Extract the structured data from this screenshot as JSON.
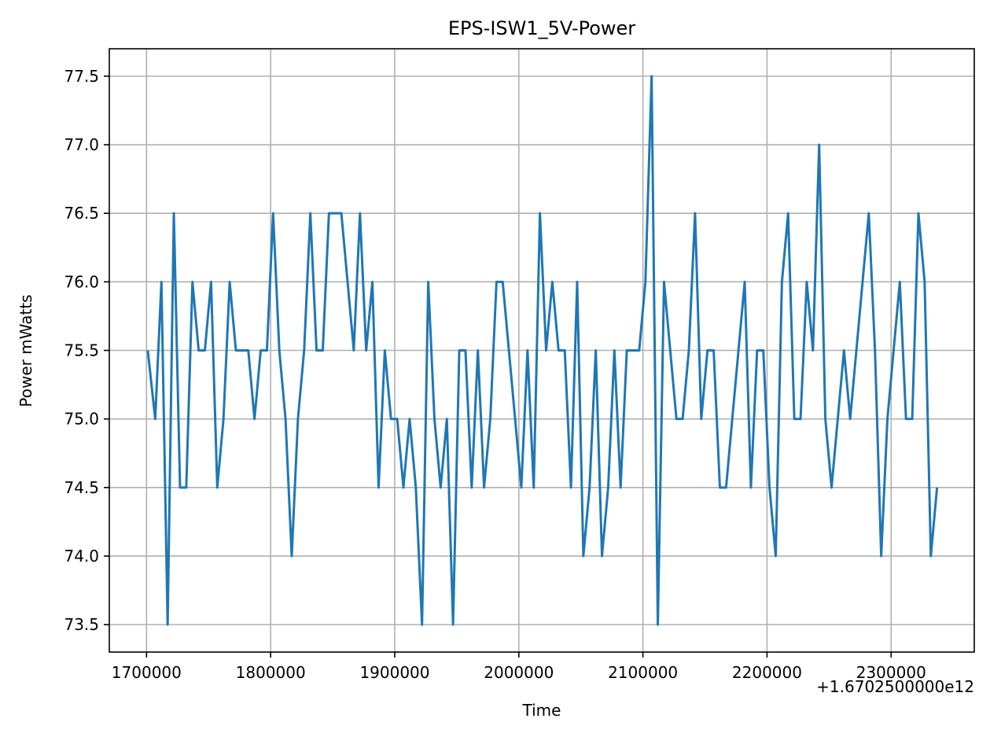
{
  "chart_data": {
    "type": "line",
    "title": "EPS-ISW1_5V-Power",
    "xlabel": "Time",
    "ylabel": "Power mWatts",
    "x_offset_label": "+1.6702500000e12",
    "xlim": [
      1670251670000,
      1670252367000
    ],
    "ylim": [
      73.3,
      77.7
    ],
    "x_ticks": [
      1670251700000,
      1670251800000,
      1670251900000,
      1670252000000,
      1670252100000,
      1670252200000,
      1670252300000
    ],
    "x_tick_labels": [
      "1700000",
      "1800000",
      "1900000",
      "2000000",
      "2100000",
      "2200000",
      "2300000"
    ],
    "y_ticks": [
      73.5,
      74.0,
      74.5,
      75.0,
      75.5,
      76.0,
      76.5,
      77.0,
      77.5
    ],
    "y_tick_labels": [
      "73.5",
      "74.0",
      "74.5",
      "75.0",
      "75.5",
      "76.0",
      "76.5",
      "77.0",
      "77.5"
    ],
    "grid": true,
    "line_color": "#1f77b4",
    "series": [
      {
        "x": [
          1670251701000,
          1670251707000,
          1670251712000,
          1670251717000,
          1670251722000,
          1670251727000,
          1670251732000,
          1670251737000,
          1670251742000,
          1670251747000,
          1670251752000,
          1670251757000,
          1670251762000,
          1670251767000,
          1670251772000,
          1670251777000,
          1670251782000,
          1670251787000,
          1670251792000,
          1670251797000,
          1670251802000,
          1670251807000,
          1670251812000,
          1670251817000,
          1670251822000,
          1670251827000,
          1670251832000,
          1670251837000,
          1670251842000,
          1670251847000,
          1670251852000,
          1670251857000,
          1670251862000,
          1670251867000,
          1670251872000,
          1670251877000,
          1670251882000,
          1670251887000,
          1670251892000,
          1670251897000,
          1670251902000,
          1670251907000,
          1670251912000,
          1670251917000,
          1670251922000,
          1670251927000,
          1670251932000,
          1670251937000,
          1670251942000,
          1670251947000,
          1670251952000,
          1670251957000,
          1670251962000,
          1670251967000,
          1670251972000,
          1670251977000,
          1670251982000,
          1670251987000,
          1670251992000,
          1670251997000,
          1670252002000,
          1670252007000,
          1670252012000,
          1670252017000,
          1670252022000,
          1670252027000,
          1670252032000,
          1670252037000,
          1670252042000,
          1670252047000,
          1670252052000,
          1670252057000,
          1670252062000,
          1670252067000,
          1670252072000,
          1670252077000,
          1670252082000,
          1670252087000,
          1670252092000,
          1670252097000,
          1670252102000,
          1670252107000,
          1670252112000,
          1670252117000,
          1670252122000,
          1670252127000,
          1670252132000,
          1670252137000,
          1670252142000,
          1670252147000,
          1670252152000,
          1670252157000,
          1670252162000,
          1670252167000,
          1670252172000,
          1670252177000,
          1670252182000,
          1670252187000,
          1670252192000,
          1670252197000,
          1670252202000,
          1670252207000,
          1670252212000,
          1670252217000,
          1670252222000,
          1670252227000,
          1670252232000,
          1670252237000,
          1670252242000,
          1670252247000,
          1670252252000,
          1670252257000,
          1670252262000,
          1670252267000,
          1670252272000,
          1670252277000,
          1670252282000,
          1670252287000,
          1670252292000,
          1670252297000,
          1670252302000,
          1670252307000,
          1670252312000,
          1670252317000,
          1670252322000,
          1670252327000,
          1670252332000,
          1670252337000
        ],
        "y": [
          75.5,
          75.0,
          76.0,
          73.5,
          76.5,
          74.5,
          74.5,
          76.0,
          75.5,
          75.5,
          76.0,
          74.5,
          75.0,
          76.0,
          75.5,
          75.5,
          75.5,
          75.0,
          75.5,
          75.5,
          76.5,
          75.5,
          75.0,
          74.0,
          75.0,
          75.5,
          76.5,
          75.5,
          75.5,
          76.5,
          76.5,
          76.5,
          76.0,
          75.5,
          76.5,
          75.5,
          76.0,
          74.5,
          75.5,
          75.0,
          75.0,
          74.5,
          75.0,
          74.5,
          73.5,
          76.0,
          75.0,
          74.5,
          75.0,
          73.5,
          75.5,
          75.5,
          74.5,
          75.5,
          74.5,
          75.0,
          76.0,
          76.0,
          75.5,
          75.0,
          74.5,
          75.5,
          74.5,
          76.5,
          75.5,
          76.0,
          75.5,
          75.5,
          74.5,
          76.0,
          74.0,
          74.5,
          75.5,
          74.0,
          74.5,
          75.5,
          74.5,
          75.5,
          75.5,
          75.5,
          76.0,
          77.5,
          73.5,
          76.0,
          75.5,
          75.0,
          75.0,
          75.5,
          76.5,
          75.0,
          75.5,
          75.5,
          74.5,
          74.5,
          75.0,
          75.5,
          76.0,
          74.5,
          75.5,
          75.5,
          74.5,
          74.0,
          76.0,
          76.5,
          75.0,
          75.0,
          76.0,
          75.5,
          77.0,
          75.0,
          74.5,
          75.0,
          75.5,
          75.0,
          75.5,
          76.0,
          76.5,
          75.5,
          74.0,
          75.0,
          75.5,
          76.0,
          75.0,
          75.0,
          76.5,
          76.0,
          74.0,
          74.5
        ]
      }
    ]
  }
}
